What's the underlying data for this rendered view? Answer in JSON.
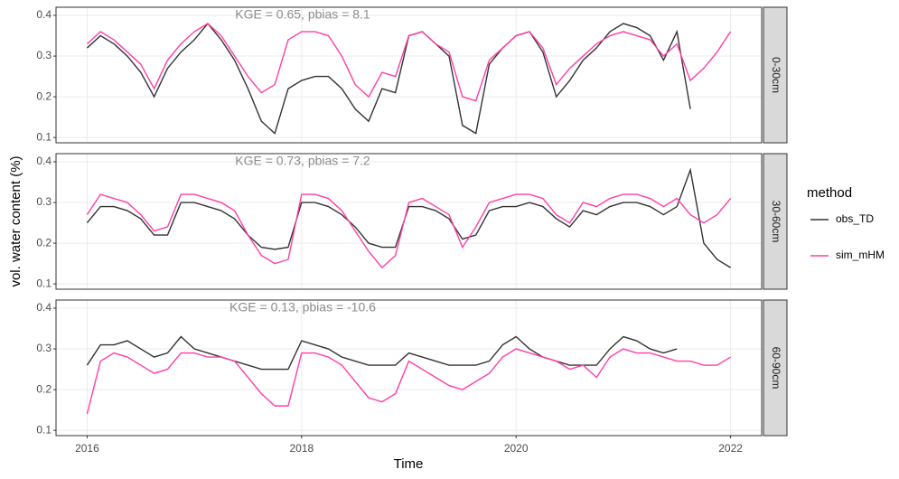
{
  "chart_data": [
    {
      "type": "line",
      "annotation": "KGE = 0.65, pbias = 8.1",
      "facet_label": "0-30cm",
      "x": [
        2016,
        2016.125,
        2016.25,
        2016.375,
        2016.5,
        2016.625,
        2016.75,
        2016.875,
        2017,
        2017.125,
        2017.25,
        2017.375,
        2017.5,
        2017.625,
        2017.75,
        2017.875,
        2018,
        2018.125,
        2018.25,
        2018.375,
        2018.5,
        2018.625,
        2018.75,
        2018.875,
        2019,
        2019.125,
        2019.25,
        2019.375,
        2019.5,
        2019.625,
        2019.75,
        2019.875,
        2020,
        2020.125,
        2020.25,
        2020.375,
        2020.5,
        2020.625,
        2020.75,
        2020.875,
        2021,
        2021.125,
        2021.25,
        2021.375,
        2021.5,
        2021.625,
        2021.75,
        2021.875,
        2022
      ],
      "series": [
        {
          "name": "obs_TD",
          "color": "#333333",
          "values": [
            0.32,
            0.35,
            0.33,
            0.3,
            0.26,
            0.2,
            0.27,
            0.31,
            0.34,
            0.38,
            0.34,
            0.29,
            0.22,
            0.14,
            0.11,
            0.22,
            0.24,
            0.25,
            0.25,
            0.22,
            0.17,
            0.14,
            0.22,
            0.21,
            0.35,
            0.36,
            0.33,
            0.3,
            0.13,
            0.11,
            0.28,
            0.32,
            0.35,
            0.36,
            0.31,
            0.2,
            0.24,
            0.29,
            0.32,
            0.36,
            0.38,
            0.37,
            0.35,
            0.29,
            0.36,
            0.17,
            null,
            null,
            null
          ]
        },
        {
          "name": "sim_mHM",
          "color": "#ff3fa4",
          "values": [
            0.33,
            0.36,
            0.34,
            0.31,
            0.28,
            0.22,
            0.29,
            0.33,
            0.36,
            0.38,
            0.35,
            0.3,
            0.25,
            0.21,
            0.23,
            0.34,
            0.36,
            0.36,
            0.35,
            0.3,
            0.23,
            0.2,
            0.26,
            0.25,
            0.35,
            0.36,
            0.33,
            0.31,
            0.2,
            0.19,
            0.29,
            0.32,
            0.35,
            0.36,
            0.32,
            0.23,
            0.27,
            0.3,
            0.33,
            0.35,
            0.36,
            0.35,
            0.34,
            0.3,
            0.33,
            0.24,
            0.27,
            0.31,
            0.36
          ]
        }
      ],
      "xlim": [
        2015.71,
        2022.29
      ],
      "xticks": [
        2016,
        2018,
        2020,
        2022
      ],
      "ylim": [
        0.087,
        0.42
      ],
      "yticks": [
        0.1,
        0.2,
        0.3,
        0.4
      ],
      "grid": true
    },
    {
      "type": "line",
      "annotation": "KGE = 0.73, pbias = 7.2",
      "facet_label": "30-60cm",
      "ylabel": "vol. water content (%)",
      "legend_title": "method",
      "x": [
        2016,
        2016.125,
        2016.25,
        2016.375,
        2016.5,
        2016.625,
        2016.75,
        2016.875,
        2017,
        2017.125,
        2017.25,
        2017.375,
        2017.5,
        2017.625,
        2017.75,
        2017.875,
        2018,
        2018.125,
        2018.25,
        2018.375,
        2018.5,
        2018.625,
        2018.75,
        2018.875,
        2019,
        2019.125,
        2019.25,
        2019.375,
        2019.5,
        2019.625,
        2019.75,
        2019.875,
        2020,
        2020.125,
        2020.25,
        2020.375,
        2020.5,
        2020.625,
        2020.75,
        2020.875,
        2021,
        2021.125,
        2021.25,
        2021.375,
        2021.5,
        2021.625,
        2021.75,
        2021.875,
        2022
      ],
      "series": [
        {
          "name": "obs_TD",
          "color": "#333333",
          "values": [
            0.25,
            0.29,
            0.29,
            0.28,
            0.26,
            0.22,
            0.22,
            0.3,
            0.3,
            0.29,
            0.28,
            0.26,
            0.22,
            0.19,
            0.185,
            0.19,
            0.3,
            0.3,
            0.29,
            0.27,
            0.24,
            0.2,
            0.19,
            0.19,
            0.29,
            0.29,
            0.28,
            0.26,
            0.21,
            0.22,
            0.28,
            0.29,
            0.29,
            0.3,
            0.29,
            0.26,
            0.24,
            0.28,
            0.27,
            0.29,
            0.3,
            0.3,
            0.29,
            0.27,
            0.29,
            0.38,
            0.2,
            0.16,
            0.14
          ]
        },
        {
          "name": "sim_mHM",
          "color": "#ff3fa4",
          "values": [
            0.27,
            0.32,
            0.31,
            0.3,
            0.27,
            0.23,
            0.24,
            0.32,
            0.32,
            0.31,
            0.3,
            0.28,
            0.22,
            0.17,
            0.15,
            0.16,
            0.32,
            0.32,
            0.31,
            0.28,
            0.23,
            0.18,
            0.14,
            0.17,
            0.3,
            0.31,
            0.29,
            0.27,
            0.19,
            0.24,
            0.3,
            0.31,
            0.32,
            0.32,
            0.31,
            0.27,
            0.25,
            0.3,
            0.29,
            0.31,
            0.32,
            0.32,
            0.31,
            0.29,
            0.31,
            0.27,
            0.25,
            0.27,
            0.31
          ]
        }
      ],
      "xlim": [
        2015.71,
        2022.29
      ],
      "xticks": [
        2016,
        2018,
        2020,
        2022
      ],
      "ylim": [
        0.087,
        0.42
      ],
      "yticks": [
        0.1,
        0.2,
        0.3,
        0.4
      ],
      "grid": true
    },
    {
      "type": "line",
      "annotation": "KGE = 0.13, pbias = -10.6",
      "facet_label": "60-90cm",
      "xlabel": "Time",
      "x": [
        2016,
        2016.125,
        2016.25,
        2016.375,
        2016.5,
        2016.625,
        2016.75,
        2016.875,
        2017,
        2017.125,
        2017.25,
        2017.375,
        2017.5,
        2017.625,
        2017.75,
        2017.875,
        2018,
        2018.125,
        2018.25,
        2018.375,
        2018.5,
        2018.625,
        2018.75,
        2018.875,
        2019,
        2019.125,
        2019.25,
        2019.375,
        2019.5,
        2019.625,
        2019.75,
        2019.875,
        2020,
        2020.125,
        2020.25,
        2020.375,
        2020.5,
        2020.625,
        2020.75,
        2020.875,
        2021,
        2021.125,
        2021.25,
        2021.375,
        2021.5,
        2021.625,
        2021.75,
        2021.875,
        2022
      ],
      "series": [
        {
          "name": "obs_TD",
          "color": "#333333",
          "values": [
            0.26,
            0.31,
            0.31,
            0.32,
            0.3,
            0.28,
            0.29,
            0.33,
            0.3,
            0.29,
            0.28,
            0.27,
            0.26,
            0.25,
            0.25,
            0.25,
            0.32,
            0.31,
            0.3,
            0.28,
            0.27,
            0.26,
            0.26,
            0.26,
            0.29,
            0.28,
            0.27,
            0.26,
            0.26,
            0.26,
            0.27,
            0.31,
            0.33,
            0.3,
            0.28,
            0.27,
            0.26,
            0.26,
            0.26,
            0.3,
            0.33,
            0.32,
            0.3,
            0.29,
            0.3,
            null,
            null,
            null,
            null
          ]
        },
        {
          "name": "sim_mHM",
          "color": "#ff3fa4",
          "values": [
            0.14,
            0.27,
            0.29,
            0.28,
            0.26,
            0.24,
            0.25,
            0.29,
            0.29,
            0.28,
            0.28,
            0.27,
            0.23,
            0.19,
            0.16,
            0.16,
            0.29,
            0.29,
            0.28,
            0.26,
            0.22,
            0.18,
            0.17,
            0.19,
            0.27,
            0.25,
            0.23,
            0.21,
            0.2,
            0.22,
            0.24,
            0.28,
            0.3,
            0.29,
            0.28,
            0.27,
            0.25,
            0.26,
            0.23,
            0.28,
            0.3,
            0.29,
            0.29,
            0.28,
            0.27,
            0.27,
            0.26,
            0.26,
            0.28
          ]
        }
      ],
      "xlim": [
        2015.71,
        2022.29
      ],
      "xticks": [
        2016,
        2018,
        2020,
        2022
      ],
      "ylim": [
        0.087,
        0.42
      ],
      "yticks": [
        0.1,
        0.2,
        0.3,
        0.4
      ],
      "grid": true
    }
  ]
}
